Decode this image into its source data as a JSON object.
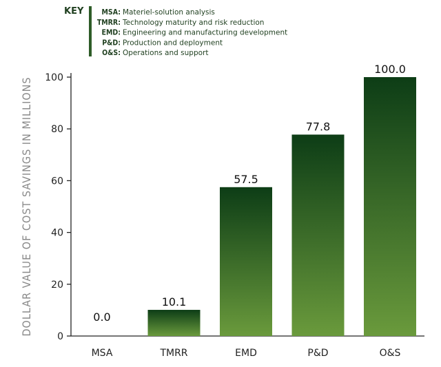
{
  "key": {
    "title": "KEY",
    "items": [
      {
        "abbr": "MSA:",
        "desc": "Materiel-solution analysis"
      },
      {
        "abbr": "TMRR:",
        "desc": "Technology maturity and risk reduction"
      },
      {
        "abbr": "EMD:",
        "desc": "Engineering and manufacturing development"
      },
      {
        "abbr": "P&D:",
        "desc": "Production and deployment"
      },
      {
        "abbr": "O&S:",
        "desc": "Operations and support"
      }
    ]
  },
  "chart_data": {
    "type": "bar",
    "title": "",
    "xlabel": "",
    "ylabel": "DOLLAR VALUE OF COST SAVINGS IN MILLIONS",
    "categories": [
      "MSA",
      "TMRR",
      "EMD",
      "P&D",
      "O&S"
    ],
    "values": [
      0.0,
      10.1,
      57.5,
      77.8,
      100.0
    ],
    "value_labels": [
      "0.0",
      "10.1",
      "57.5",
      "77.8",
      "100.0"
    ],
    "ylim": [
      0,
      100
    ],
    "yticks": [
      0,
      20,
      40,
      60,
      80,
      100
    ],
    "grid": false,
    "colors": {
      "bar_top": "#0d3d16",
      "bar_bottom": "#6a9a3c",
      "key_bar": "#2e5c28"
    }
  }
}
